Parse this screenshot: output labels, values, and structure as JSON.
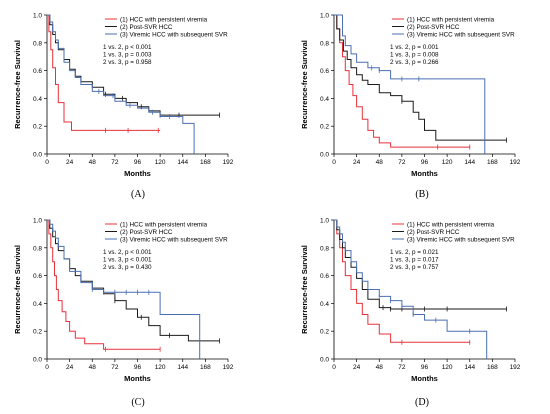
{
  "chart_data": [
    {
      "type": "line",
      "panel_label": "(A)",
      "xlabel": "Months",
      "ylabel": "Recurrence-free Survival",
      "xlim": [
        0,
        192
      ],
      "ylim": [
        0,
        1.0
      ],
      "x_ticks": [
        0,
        24,
        48,
        72,
        96,
        120,
        144,
        168,
        192
      ],
      "y_ticks": [
        0.0,
        0.2,
        0.4,
        0.6,
        0.8,
        1.0
      ],
      "legend": [
        "(1) HCC with persistent viremia",
        "(2) Post-SVR HCC",
        "(3) Viremic HCC with subsequent SVR"
      ],
      "stats": [
        "1 vs. 2, p < 0.001",
        "1 vs. 3, p = 0.003",
        "2 vs. 3, p = 0.958"
      ],
      "series": [
        {
          "name": "(1) HCC with persistent viremia",
          "color": "#e8303a",
          "x": [
            0,
            2,
            4,
            6,
            9,
            12,
            18,
            26,
            50,
            120
          ],
          "y": [
            1.0,
            0.88,
            0.75,
            0.62,
            0.5,
            0.37,
            0.23,
            0.17,
            0.17,
            0.17
          ],
          "censored": [
            62,
            86,
            118
          ]
        },
        {
          "name": "(2) Post-SVR HCC",
          "color": "#1a1a1a",
          "x": [
            0,
            3,
            6,
            9,
            12,
            18,
            24,
            30,
            36,
            48,
            60,
            72,
            84,
            96,
            108,
            120,
            150,
            183
          ],
          "y": [
            1.0,
            0.93,
            0.86,
            0.8,
            0.75,
            0.68,
            0.61,
            0.56,
            0.52,
            0.48,
            0.43,
            0.4,
            0.37,
            0.34,
            0.31,
            0.28,
            0.28,
            0.28
          ],
          "censored": [
            62,
            80,
            100,
            120,
            140,
            183
          ]
        },
        {
          "name": "(3) Viremic HCC with subsequent SVR",
          "color": "#4a6fb3",
          "x": [
            0,
            3,
            6,
            9,
            12,
            18,
            24,
            30,
            36,
            48,
            60,
            72,
            84,
            96,
            108,
            120,
            144,
            156
          ],
          "y": [
            1.0,
            0.95,
            0.88,
            0.82,
            0.76,
            0.66,
            0.6,
            0.55,
            0.5,
            0.45,
            0.42,
            0.38,
            0.35,
            0.33,
            0.3,
            0.27,
            0.22,
            0.0
          ],
          "censored": [
            55,
            70,
            88,
            112,
            130
          ]
        }
      ]
    },
    {
      "type": "line",
      "panel_label": "(B)",
      "xlabel": "Months",
      "ylabel": "Recurrence-free Survival",
      "xlim": [
        0,
        192
      ],
      "ylim": [
        0,
        1.0
      ],
      "x_ticks": [
        0,
        24,
        48,
        72,
        96,
        120,
        144,
        168,
        192
      ],
      "y_ticks": [
        0.0,
        0.2,
        0.4,
        0.6,
        0.8,
        1.0
      ],
      "legend": [
        "(1) HCC with persistent viremia",
        "(2) Post-SVR HCC",
        "(3) Viremic HCC with subsequent SVR"
      ],
      "stats": [
        "1 vs. 2, p = 0.001",
        "1 vs. 3, p = 0.008",
        "2 vs. 3, p = 0.266"
      ],
      "series": [
        {
          "name": "(1) HCC with persistent viremia",
          "color": "#e8303a",
          "x": [
            0,
            3,
            6,
            9,
            12,
            16,
            20,
            24,
            30,
            36,
            42,
            48,
            60,
            144
          ],
          "y": [
            1.0,
            0.9,
            0.8,
            0.7,
            0.6,
            0.5,
            0.42,
            0.34,
            0.25,
            0.17,
            0.12,
            0.08,
            0.05,
            0.05
          ],
          "censored": [
            110,
            144
          ]
        },
        {
          "name": "(2) Post-SVR HCC",
          "color": "#1a1a1a",
          "x": [
            0,
            3,
            6,
            10,
            14,
            18,
            24,
            30,
            36,
            48,
            60,
            72,
            84,
            90,
            96,
            108,
            120,
            183
          ],
          "y": [
            1.0,
            0.9,
            0.82,
            0.74,
            0.68,
            0.62,
            0.57,
            0.53,
            0.5,
            0.44,
            0.42,
            0.38,
            0.3,
            0.25,
            0.17,
            0.1,
            0.1,
            0.1
          ],
          "censored": [
            72,
            183
          ]
        },
        {
          "name": "(3) Viremic HCC with subsequent SVR",
          "color": "#4a6fb3",
          "x": [
            0,
            6,
            9,
            12,
            18,
            24,
            36,
            48,
            60,
            80,
            96,
            120,
            150,
            160
          ],
          "y": [
            1.0,
            1.0,
            0.85,
            0.78,
            0.72,
            0.66,
            0.62,
            0.6,
            0.54,
            0.54,
            0.54,
            0.54,
            0.54,
            0.0
          ],
          "censored": [
            40,
            48,
            72,
            90
          ]
        }
      ]
    },
    {
      "type": "line",
      "panel_label": "(C)",
      "xlabel": "Months",
      "ylabel": "Recurrence-free Survival",
      "xlim": [
        0,
        192
      ],
      "ylim": [
        0,
        1.0
      ],
      "x_ticks": [
        0,
        24,
        48,
        72,
        96,
        120,
        144,
        168,
        192
      ],
      "y_ticks": [
        0.0,
        0.2,
        0.4,
        0.6,
        0.8,
        1.0
      ],
      "legend": [
        "(1) HCC with persistent viremia",
        "(2) Post-SVR HCC",
        "(3) Viremic HCC with subsequent SVR"
      ],
      "stats": [
        "1 vs. 2, p < 0.001",
        "1 vs. 3, p < 0.001",
        "2 vs. 3, p = 0.430"
      ],
      "series": [
        {
          "name": "(1) HCC with persistent viremia",
          "color": "#e8303a",
          "x": [
            0,
            2,
            4,
            6,
            8,
            10,
            12,
            16,
            20,
            24,
            30,
            40,
            60,
            120
          ],
          "y": [
            1.0,
            0.9,
            0.8,
            0.7,
            0.6,
            0.5,
            0.42,
            0.34,
            0.27,
            0.2,
            0.15,
            0.11,
            0.07,
            0.07
          ],
          "censored": [
            62,
            120
          ]
        },
        {
          "name": "(2) Post-SVR HCC",
          "color": "#1a1a1a",
          "x": [
            0,
            3,
            6,
            9,
            12,
            18,
            24,
            30,
            36,
            48,
            60,
            72,
            84,
            96,
            108,
            120,
            150,
            183
          ],
          "y": [
            1.0,
            0.94,
            0.88,
            0.83,
            0.78,
            0.72,
            0.65,
            0.6,
            0.56,
            0.51,
            0.47,
            0.42,
            0.36,
            0.3,
            0.24,
            0.17,
            0.13,
            0.13
          ],
          "censored": [
            72,
            100,
            130,
            183
          ]
        },
        {
          "name": "(3) Viremic HCC with subsequent SVR",
          "color": "#4a6fb3",
          "x": [
            0,
            3,
            6,
            9,
            12,
            18,
            24,
            36,
            48,
            60,
            72,
            84,
            96,
            108,
            120,
            144,
            156,
            162
          ],
          "y": [
            1.0,
            0.97,
            0.92,
            0.87,
            0.81,
            0.72,
            0.63,
            0.55,
            0.5,
            0.48,
            0.48,
            0.48,
            0.48,
            0.48,
            0.32,
            0.32,
            0.32,
            0.0
          ],
          "censored": [
            48,
            60,
            72,
            84,
            96,
            108
          ]
        }
      ]
    },
    {
      "type": "line",
      "panel_label": "(D)",
      "xlabel": "Months",
      "ylabel": "Recurrence-free Survival",
      "xlim": [
        0,
        192
      ],
      "ylim": [
        0,
        1.0
      ],
      "x_ticks": [
        0,
        24,
        48,
        72,
        96,
        120,
        144,
        168,
        192
      ],
      "y_ticks": [
        0.0,
        0.2,
        0.4,
        0.6,
        0.8,
        1.0
      ],
      "legend": [
        "(1) HCC with persistent viremia",
        "(2) Post-SVR HCC",
        "(3) Viremic HCC with subsequent SVR"
      ],
      "stats": [
        "1 vs. 2, p = 0.021",
        "1 vs. 3, p = 0.017",
        "2 vs. 3, p = 0.757"
      ],
      "series": [
        {
          "name": "(1) HCC with persistent viremia",
          "color": "#e8303a",
          "x": [
            0,
            3,
            6,
            9,
            12,
            18,
            24,
            30,
            36,
            48,
            60,
            144
          ],
          "y": [
            1.0,
            0.9,
            0.8,
            0.7,
            0.6,
            0.5,
            0.4,
            0.32,
            0.25,
            0.18,
            0.12,
            0.12
          ],
          "censored": [
            72,
            144
          ]
        },
        {
          "name": "(2) Post-SVR HCC",
          "color": "#1a1a1a",
          "x": [
            0,
            3,
            6,
            9,
            12,
            18,
            24,
            30,
            36,
            48,
            60,
            72,
            183
          ],
          "y": [
            1.0,
            0.93,
            0.86,
            0.8,
            0.73,
            0.66,
            0.58,
            0.5,
            0.43,
            0.37,
            0.36,
            0.36,
            0.36
          ],
          "censored": [
            52,
            60,
            72,
            96,
            120,
            183
          ]
        },
        {
          "name": "(3) Viremic HCC with subsequent SVR",
          "color": "#4a6fb3",
          "x": [
            0,
            3,
            6,
            9,
            12,
            18,
            24,
            30,
            36,
            48,
            60,
            72,
            84,
            96,
            120,
            156,
            162
          ],
          "y": [
            1.0,
            0.95,
            0.9,
            0.84,
            0.78,
            0.7,
            0.62,
            0.56,
            0.5,
            0.45,
            0.42,
            0.38,
            0.32,
            0.28,
            0.2,
            0.2,
            0.0
          ],
          "censored": [
            48,
            60,
            72,
            84,
            108,
            144
          ]
        }
      ]
    }
  ]
}
